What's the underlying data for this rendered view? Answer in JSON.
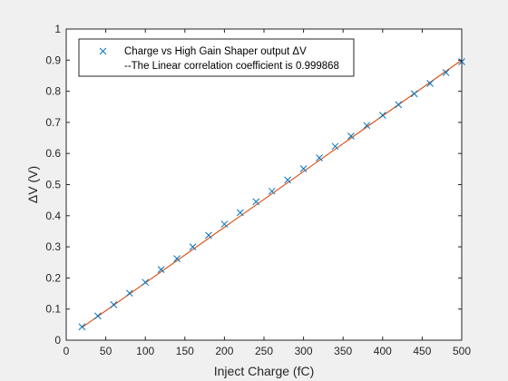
{
  "chart_data": {
    "type": "scatter",
    "xlabel": "Inject Charge (fC)",
    "ylabel": "ΔV (V)",
    "xlim": [
      0,
      500
    ],
    "ylim": [
      0,
      1
    ],
    "xticks": [
      0,
      50,
      100,
      150,
      200,
      250,
      300,
      350,
      400,
      450,
      500
    ],
    "yticks": [
      0,
      0.1,
      0.2,
      0.3,
      0.4,
      0.5,
      0.6,
      0.7,
      0.8,
      0.9,
      1
    ],
    "grid": false,
    "legend_position": "top-left",
    "series": [
      {
        "name": "Charge vs High Gain Shaper output ΔV",
        "marker": "x",
        "color": "#0072bd",
        "x": [
          20,
          40,
          60,
          80,
          100,
          120,
          140,
          160,
          180,
          200,
          220,
          240,
          260,
          280,
          300,
          320,
          340,
          360,
          380,
          400,
          420,
          440,
          460,
          480,
          500
        ],
        "y": [
          0.043,
          0.078,
          0.114,
          0.151,
          0.186,
          0.227,
          0.262,
          0.3,
          0.337,
          0.373,
          0.41,
          0.445,
          0.479,
          0.515,
          0.551,
          0.586,
          0.623,
          0.656,
          0.69,
          0.723,
          0.757,
          0.792,
          0.825,
          0.86,
          0.895
        ]
      },
      {
        "name": "--The Linear correlation coefficient is 0.999868",
        "type": "line",
        "color": "#d95319",
        "x": [
          20,
          500
        ],
        "y": [
          0.041,
          0.9
        ]
      }
    ]
  }
}
